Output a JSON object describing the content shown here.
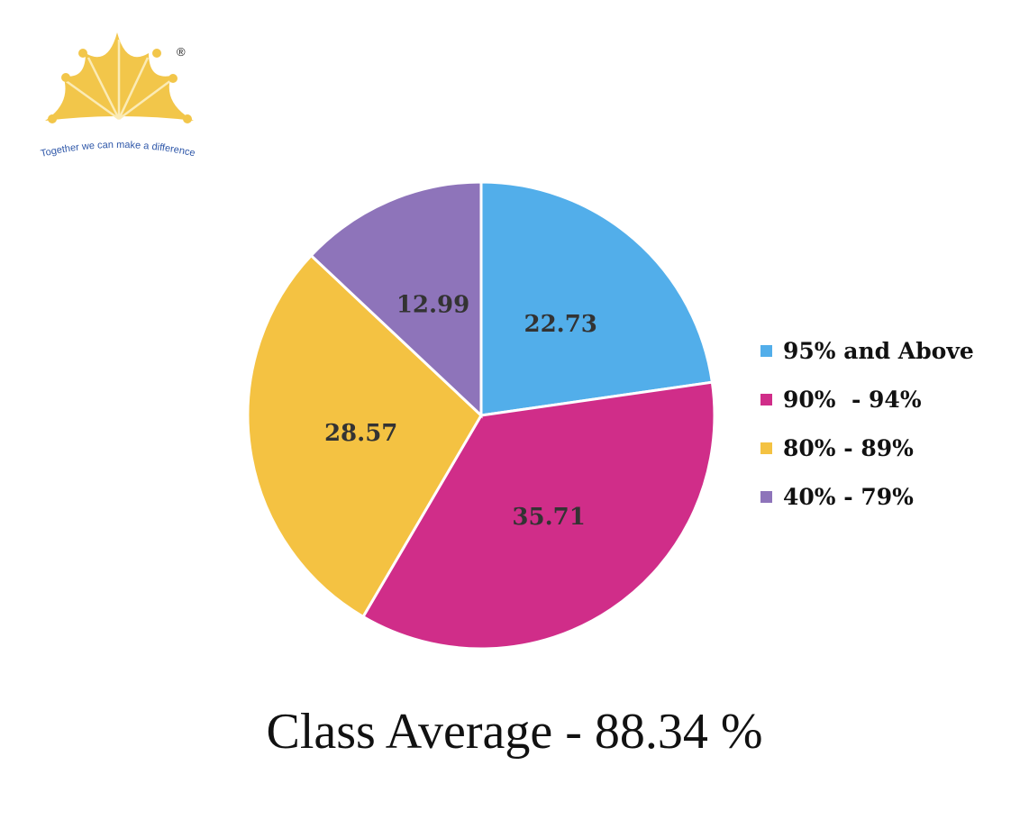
{
  "logo": {
    "tagline": "Together we can make a difference",
    "mark": "®"
  },
  "chart_data": {
    "type": "pie",
    "title": "",
    "labels": [
      "95% and Above",
      "90%  - 94%",
      "80% - 89%",
      "40% - 79%"
    ],
    "values": [
      22.73,
      35.71,
      28.57,
      12.99
    ],
    "data_labels": [
      "22.73",
      "35.71",
      "28.57",
      "12.99"
    ],
    "colors": [
      "#52AEEA",
      "#D02D89",
      "#F4C242",
      "#8E74BA"
    ],
    "start_angle": "top",
    "direction": "clockwise",
    "legend_position": "right"
  },
  "footer": {
    "text": "Class Average - 88.34 %"
  }
}
